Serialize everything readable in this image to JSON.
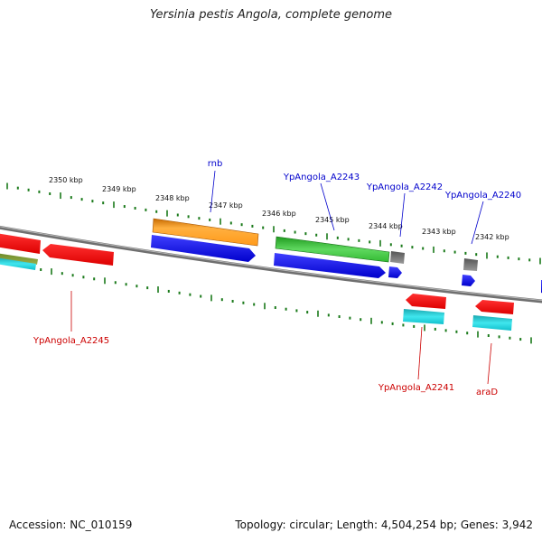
{
  "title": "Yersinia pestis Angola, complete genome",
  "footer": {
    "accession": "Accession: NC_010159",
    "topology": "Topology: circular; Length: 4,504,254 bp; Genes: 3,942"
  },
  "scale": {
    "labels": [
      "2350 kbp",
      "2349 kbp",
      "2348 kbp",
      "2347 kbp",
      "2346 kbp",
      "2345 kbp",
      "2344 kbp",
      "2343 kbp",
      "2342 kbp"
    ]
  },
  "genes": {
    "rnb": "rnb",
    "a2243": "YpAngola_A2243",
    "a2242": "YpAngola_A2242",
    "a2240": "YpAngola_A2240",
    "a2245": "YpAngola_A2245",
    "a2241": "YpAngola_A2241",
    "arad": "araD"
  },
  "colors": {
    "plus_strand_label": "#0000cc",
    "minus_strand_label": "#cc0000",
    "tick": "#1a7a1a",
    "backbone": "#808080"
  }
}
